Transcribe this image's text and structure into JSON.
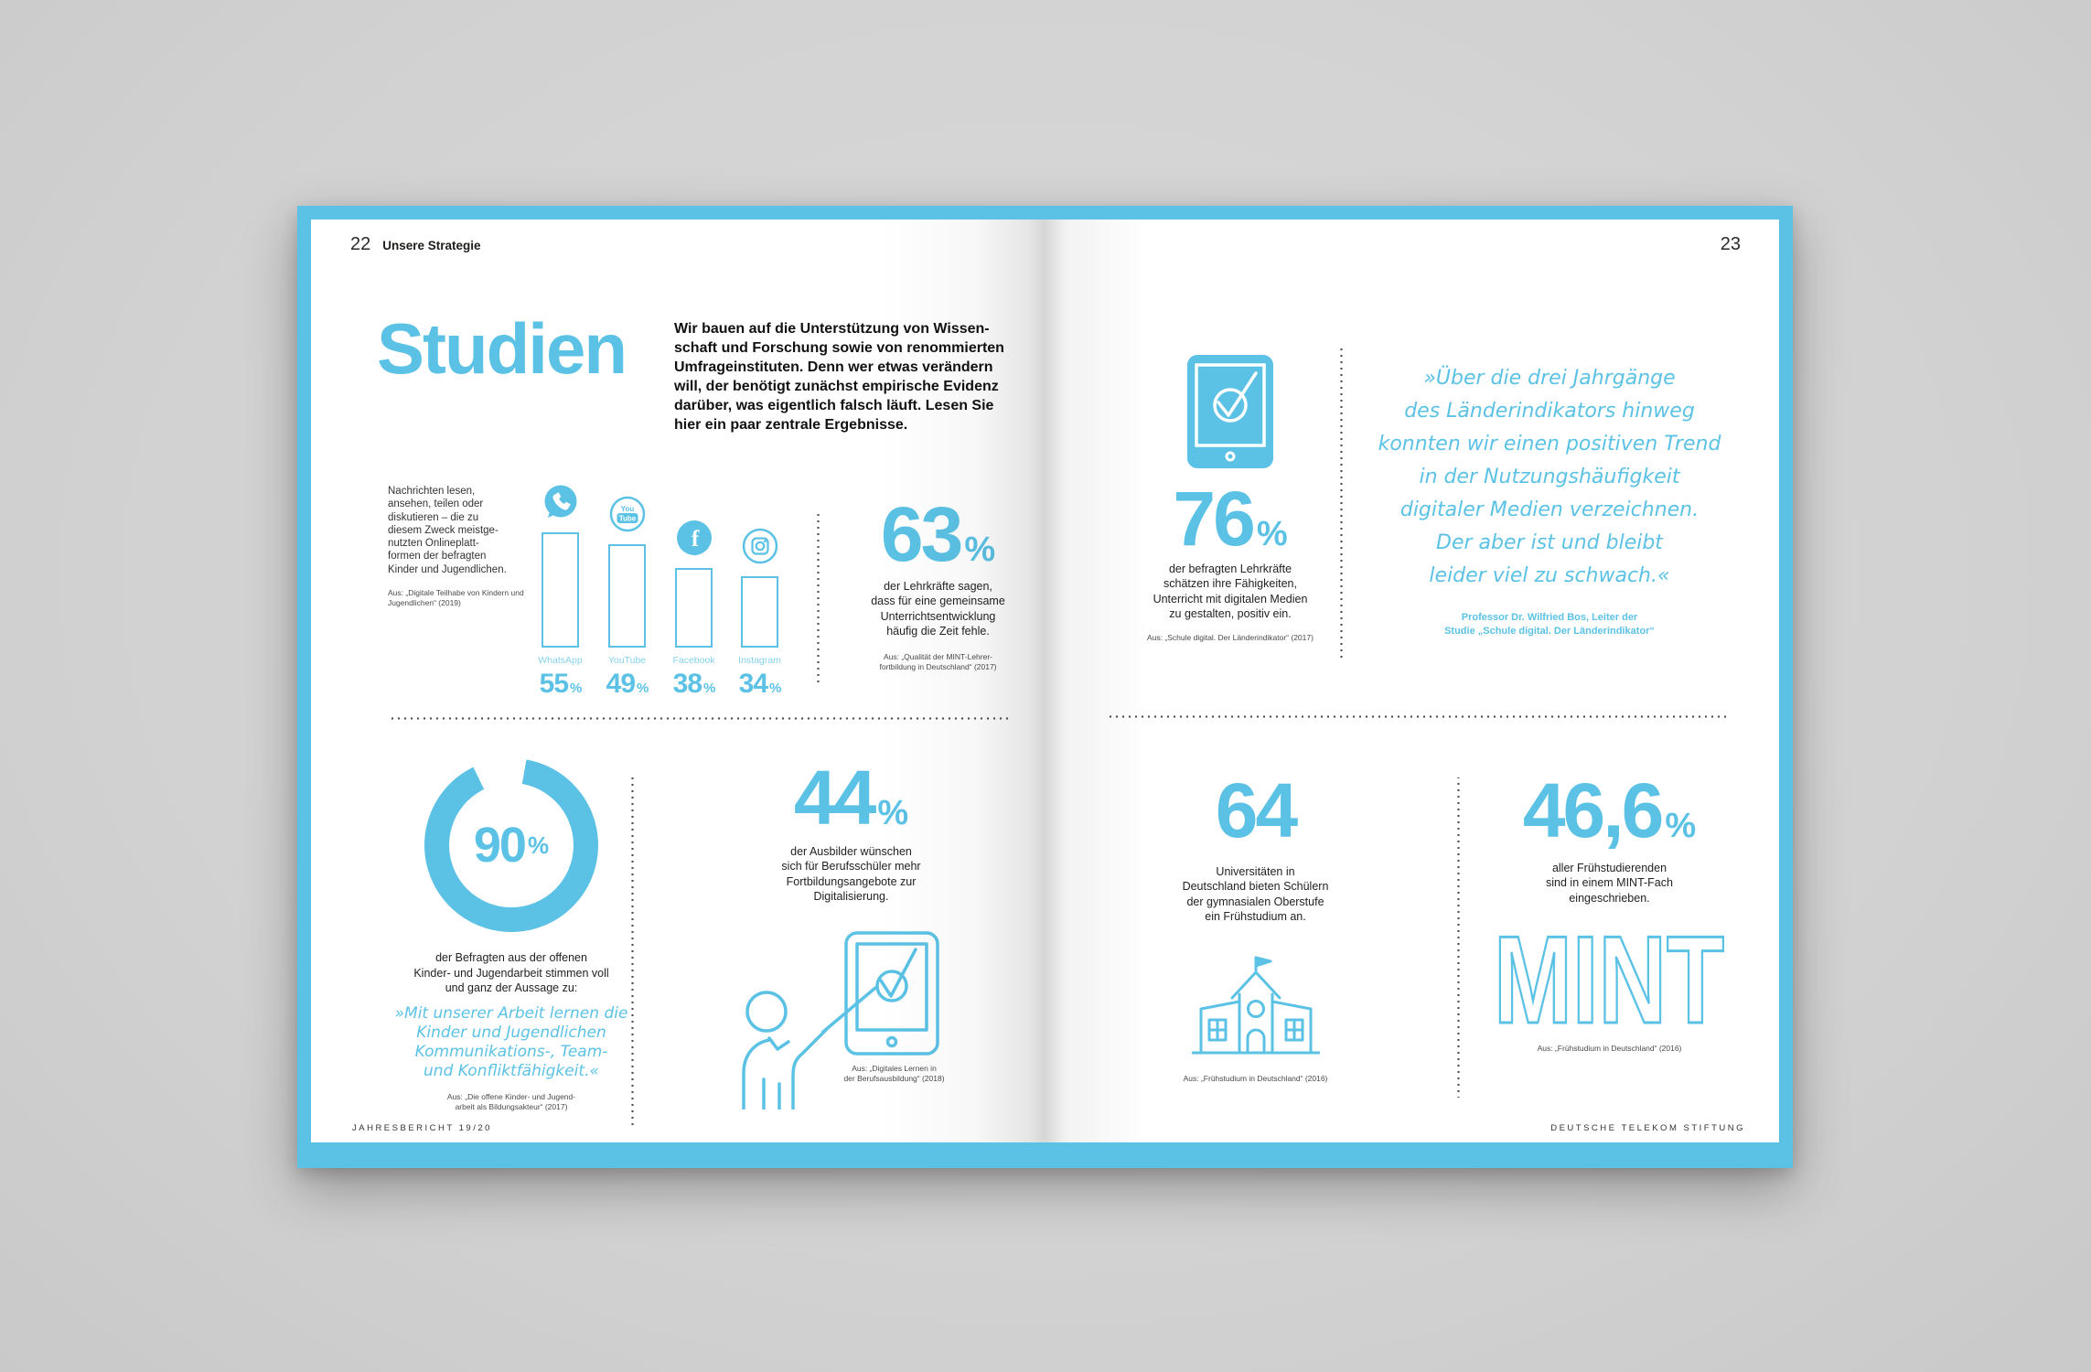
{
  "colors": {
    "accent": "#5bc2e5",
    "paper": "#ffffff",
    "background": "#d4d4d4",
    "text": "#1d1d1b"
  },
  "sym": {
    "pct": "%"
  },
  "left": {
    "page_number": "22",
    "section_title": "Unsere Strategie",
    "headline": "Studien",
    "intro": "Wir bauen auf die Unterstützung von Wissen-\nschaft und Forschung sowie von renommierten\nUmfrageinstituten. Denn wer etwas verändern\nwill, der benötigt zunächst empirische Evidenz\ndarüber, was eigentlich falsch läuft. Lesen Sie\nhier ein paar zentrale Ergebnisse.",
    "platforms": {
      "description": "Nachrichten lesen,\nansehen, teilen oder\ndiskutieren – die zu\ndiesem Zweck meistge-\nnutzten Onlineplatt-\nformen der befragten\nKinder und Jugendlichen.",
      "source": "Aus: „Digitale Teilhabe von Kindern und\nJugendlichen“ (2019)",
      "chart": {
        "type": "bar",
        "categories": [
          "WhatsApp",
          "YouTube",
          "Facebook",
          "Instagram"
        ],
        "values": [
          55,
          49,
          38,
          34
        ],
        "unit": "%",
        "icons": [
          "whatsapp-icon",
          "youtube-icon",
          "facebook-icon",
          "instagram-icon"
        ]
      }
    },
    "stat63": {
      "value": "63",
      "text": "der Lehrkräfte sagen,\ndass für eine gemeinsame\nUnterrichtsentwicklung\nhäufig die Zeit fehle.",
      "source": "Aus: „Qualität der MINT-Lehrer-\nfortbildung in Deutschland“ (2017)"
    },
    "stat90": {
      "value": "90",
      "chart": {
        "type": "donut",
        "value": 90,
        "unit": "%"
      },
      "lead": "der Befragten aus der offenen\nKinder- und Jugendarbeit stimmen voll\nund ganz der Aussage zu:",
      "quote": "»Mit unserer Arbeit lernen die\nKinder und Jugendlichen\nKommunikations-, Team-\nund Konfliktfähigkeit.«",
      "source": "Aus: „Die offene Kinder- und Jugend-\narbeit als Bildungsakteur“ (2017)"
    },
    "stat44": {
      "value": "44",
      "text": "der Ausbilder wünschen\nsich für Berufsschüler mehr\nFortbildungsangebote zur\nDigitalisierung.",
      "illustration": "trainer-pointing-tablet-icon",
      "source": "Aus: „Digitales Lernen in\nder Berufsausbildung“ (2018)"
    },
    "footer": "JAHRESBERICHT 19/20"
  },
  "right": {
    "page_number": "23",
    "stat76": {
      "value": "76",
      "icon": "tablet-check-icon",
      "text": "der befragten Lehrkräfte\nschätzen ihre Fähigkeiten,\nUnterricht mit digitalen Medien\nzu gestalten, positiv ein.",
      "source": "Aus: „Schule digital. Der Länderindikator“ (2017)"
    },
    "quote": {
      "text": "»Über die drei Jahrgänge\ndes Länderindikators hinweg\nkonnten wir einen positiven Trend\nin der Nutzungshäufigkeit\ndigitaler Medien verzeichnen.\nDer aber ist und bleibt\nleider viel zu schwach.«",
      "attribution": "Professor Dr. Wilfried Bos, Leiter der\nStudie „Schule digital. Der Länderindikator“"
    },
    "stat64": {
      "value": "64",
      "text": "Universitäten in\nDeutschland bieten Schülern\nder gymnasialen Oberstufe\nein Frühstudium an.",
      "icon": "school-building-icon",
      "source": "Aus: „Frühstudium in Deutschland“ (2016)"
    },
    "stat466": {
      "value": "46,6",
      "text": "aller Frühstudierenden\nsind in einem MINT-Fach\neingeschrieben.",
      "word": "MINT",
      "source": "Aus: „Frühstudium in Deutschland“ (2016)"
    },
    "footer": "DEUTSCHE TELEKOM STIFTUNG"
  }
}
